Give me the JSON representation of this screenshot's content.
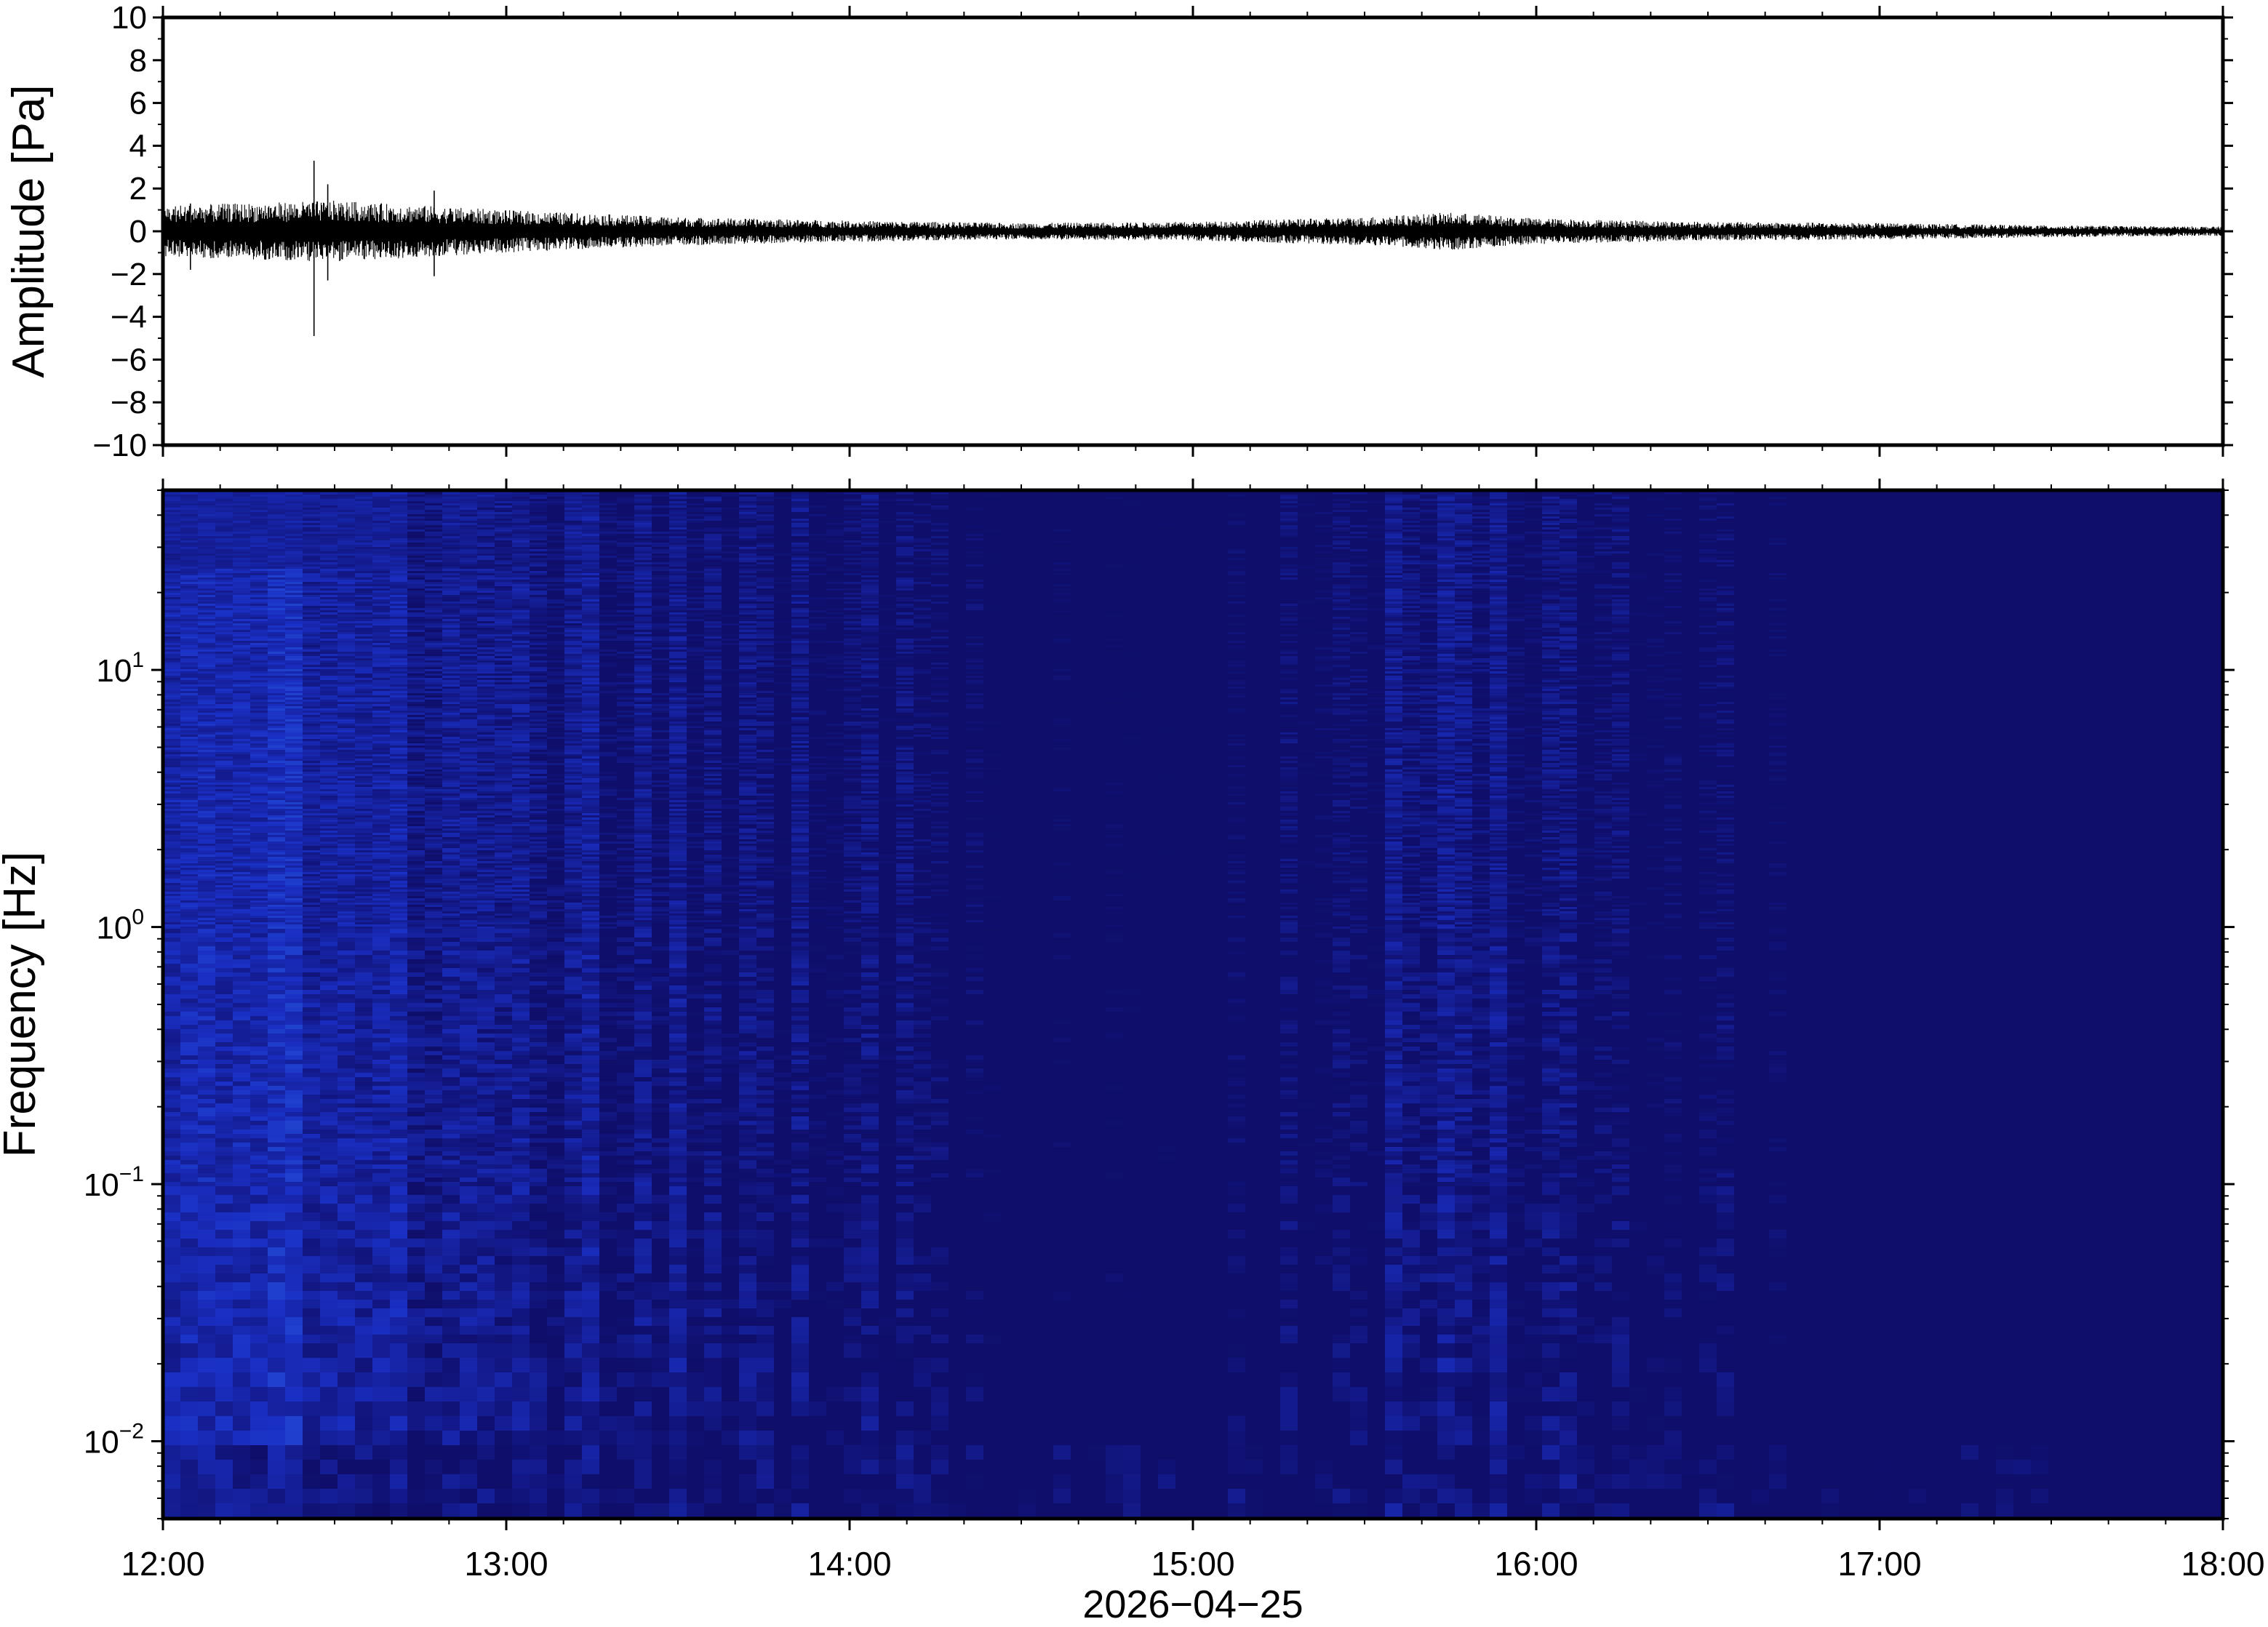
{
  "chart_data": [
    {
      "type": "line",
      "panel": "waveform",
      "ylabel": "Amplitude [Pa]",
      "ylim": [
        -10,
        10
      ],
      "y_ticks": [
        "10",
        "8",
        "6",
        "4",
        "2",
        "0",
        "−2",
        "−4",
        "−6",
        "−8",
        "−10"
      ],
      "y_tick_values": [
        10,
        8,
        6,
        4,
        2,
        0,
        -2,
        -4,
        -6,
        -8,
        -10
      ],
      "x_range": [
        "12:00",
        "18:00"
      ],
      "series": [
        {
          "envelope_hours": [
            12.0,
            12.25,
            12.5,
            12.75,
            13.0,
            13.5,
            14.0,
            14.5,
            15.0,
            15.5,
            15.75,
            16.0,
            16.5,
            17.0,
            17.5,
            18.0
          ],
          "envelope_pa": [
            1.1,
            1.2,
            1.3,
            1.1,
            0.9,
            0.6,
            0.45,
            0.35,
            0.4,
            0.6,
            0.8,
            0.55,
            0.4,
            0.35,
            0.25,
            0.2
          ],
          "spikes": [
            {
              "hour": 12.44,
              "max": 3.3,
              "min": -4.9
            },
            {
              "hour": 12.48,
              "max": 2.2,
              "min": -2.3
            },
            {
              "hour": 12.79,
              "max": 1.9,
              "min": -2.1
            },
            {
              "hour": 12.08,
              "max": 1.3,
              "min": -1.8
            }
          ]
        }
      ]
    },
    {
      "type": "heatmap",
      "panel": "spectrogram",
      "ylabel": "Frequency [Hz]",
      "xlabel": "2026−04−25",
      "yscale": "log",
      "ylim": [
        0.005,
        50
      ],
      "y_ticks": [
        {
          "value": 10,
          "base": "10",
          "exp": "1"
        },
        {
          "value": 1,
          "base": "10",
          "exp": "0"
        },
        {
          "value": 0.1,
          "base": "10",
          "exp": "−1"
        },
        {
          "value": 0.01,
          "base": "10",
          "exp": "−2"
        }
      ],
      "x_ticks": [
        "12:00",
        "13:00",
        "14:00",
        "15:00",
        "16:00",
        "17:00",
        "18:00"
      ],
      "x_tick_hours": [
        12,
        13,
        14,
        15,
        16,
        17,
        18
      ],
      "colormap": [
        "#0f0e6b",
        "#1a2fc4",
        "#2f78e8",
        "#42c8ef",
        "#8ee8b8",
        "#d6f28f",
        "#f7d66a",
        "#f8a24a",
        "#ef5a4f",
        "#f48a8a"
      ],
      "level_profile": {
        "log10_freq": [
          1.7,
          1.5,
          1.3,
          1.0,
          0.7,
          0.4,
          0.0,
          -0.3,
          -0.5,
          -0.7,
          -0.9,
          -1.1,
          -1.3,
          -1.5,
          -1.7,
          -1.9,
          -2.1,
          -2.3
        ],
        "level": [
          0.0,
          0.1,
          0.16,
          0.27,
          0.36,
          0.44,
          0.5,
          0.55,
          0.6,
          0.7,
          0.77,
          0.8,
          0.78,
          0.73,
          0.64,
          0.55,
          0.42,
          0.35
        ]
      },
      "time_profile": {
        "hours": [
          12.0,
          12.5,
          13.0,
          13.5,
          14.0,
          14.5,
          15.0,
          15.5,
          15.75,
          16.0,
          16.5,
          17.0,
          17.5,
          18.0
        ],
        "offset": [
          0.06,
          0.08,
          0.04,
          0.02,
          0.0,
          -0.04,
          -0.06,
          0.0,
          0.03,
          0.0,
          -0.03,
          -0.06,
          -0.1,
          -0.14
        ]
      }
    }
  ]
}
